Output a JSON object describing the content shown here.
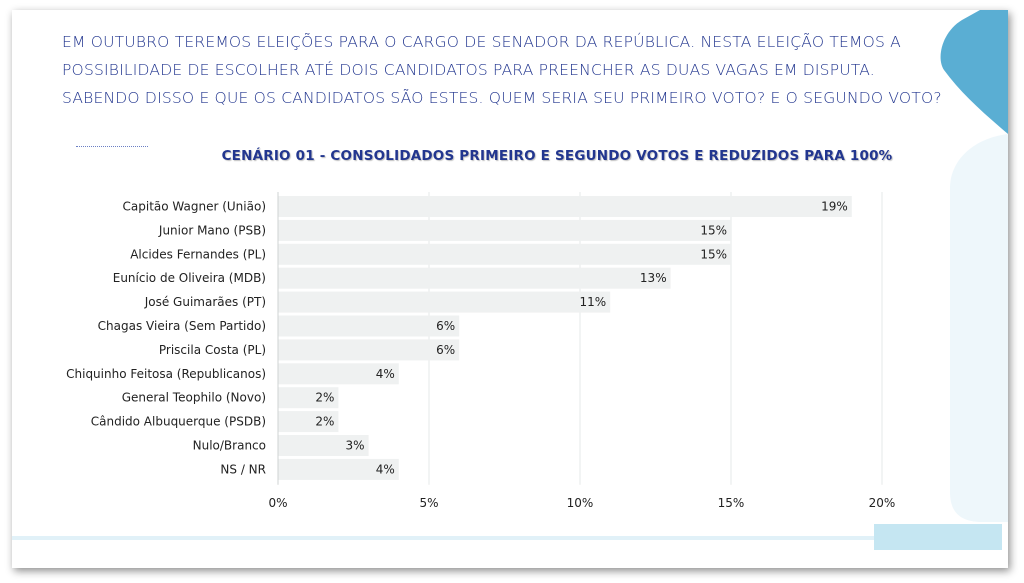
{
  "question": {
    "lines": [
      "EM OUTUBRO TEREMOS ELEIÇÕES PARA O CARGO DE SENADOR DA REPÚBLICA. NESTA ELEIÇÃO TEMOS A",
      "POSSIBILIDADE DE ESCOLHER ATÉ DOIS CANDIDATOS PARA PREENCHER AS DUAS VAGAS EM DISPUTA.",
      "SABENDO DISSO E QUE OS CANDIDATOS SÃO ESTES. QUEM SERIA SEU PRIMEIRO VOTO? E O SEGUNDO VOTO?"
    ]
  },
  "colors": {
    "text_blue": "#22368f",
    "bar": "#eff1f1",
    "accent_blue": "#5aaed3",
    "accent_light": "#e3f3fa"
  },
  "chart_data": {
    "type": "bar",
    "orientation": "horizontal",
    "title": "CENÁRIO 01 - CONSOLIDADOS PRIMEIRO E SEGUNDO VOTOS E REDUZIDOS PARA 100%",
    "categories": [
      "Capitão Wagner (União)",
      "Junior Mano (PSB)",
      "Alcides Fernandes (PL)",
      "Eunício de Oliveira (MDB)",
      "José Guimarães (PT)",
      "Chagas Vieira (Sem Partido)",
      "Priscila Costa (PL)",
      "Chiquinho Feitosa (Republicanos)",
      "General Teophilo (Novo)",
      "Cândido Albuquerque (PSDB)",
      "Nulo/Branco",
      "NS / NR"
    ],
    "values": [
      19,
      15,
      15,
      13,
      11,
      6,
      6,
      4,
      2,
      2,
      3,
      4
    ],
    "value_labels": [
      "19%",
      "15%",
      "15%",
      "13%",
      "11%",
      "6%",
      "6%",
      "4%",
      "2%",
      "2%",
      "3%",
      "4%"
    ],
    "xlim": [
      0,
      20
    ],
    "xticks": [
      0,
      5,
      10,
      15,
      20
    ],
    "xtick_labels": [
      "0%",
      "5%",
      "10%",
      "15%",
      "20%"
    ],
    "grid": true,
    "legend": "none"
  }
}
